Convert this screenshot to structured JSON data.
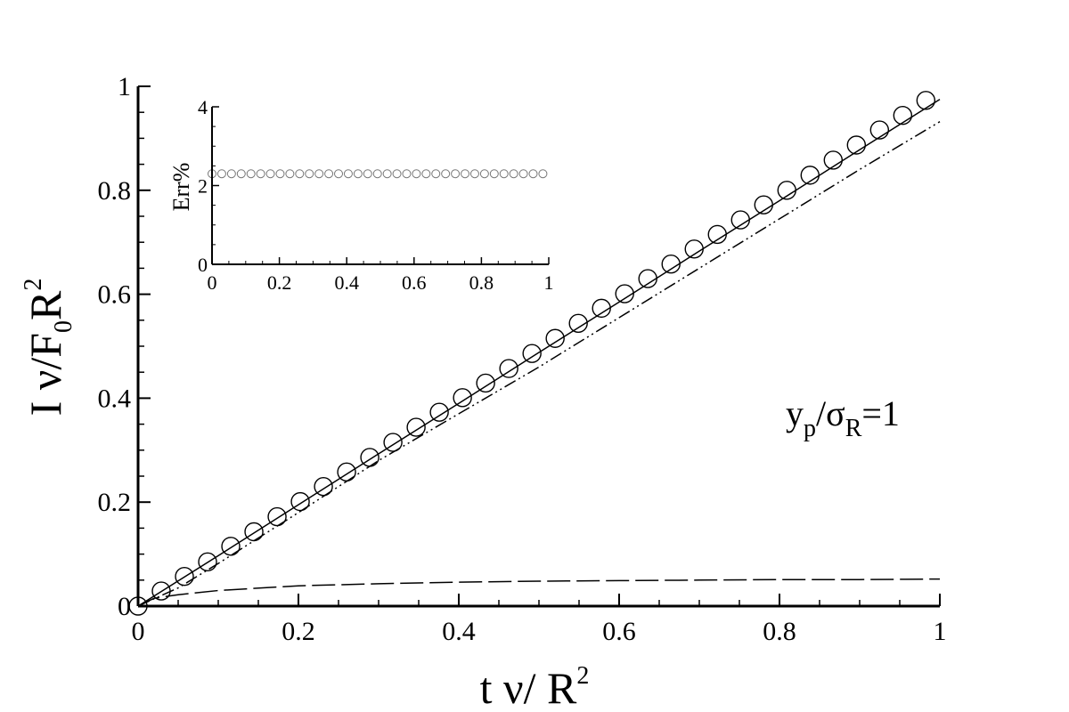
{
  "chart_data": [
    {
      "type": "line",
      "title": "",
      "xlabel": {
        "base": "t ν/ R",
        "sup": "2"
      },
      "ylabel": {
        "pre": "I ν/F",
        "sub": "0",
        "mid": "R",
        "sup": "2"
      },
      "xlim": [
        0,
        1
      ],
      "ylim": [
        0,
        1
      ],
      "xticks": [
        "0",
        "0.2",
        "0.4",
        "0.6",
        "0.8",
        "1"
      ],
      "yticks": [
        "0",
        "0.2",
        "0.4",
        "0.6",
        "0.8",
        "1"
      ],
      "grid": false,
      "legend": "none",
      "annotation": {
        "a": "y",
        "a_sub": "p",
        "b": "/σ",
        "b_sub": "R",
        "c": "=1"
      },
      "series": [
        {
          "style": "circles",
          "x": [
            0,
            0.0289,
            0.0578,
            0.0867,
            0.1156,
            0.1445,
            0.1734,
            0.2023,
            0.2312,
            0.2601,
            0.289,
            0.3179,
            0.3468,
            0.3757,
            0.4046,
            0.4335,
            0.4624,
            0.4913,
            0.5202,
            0.5491,
            0.578,
            0.6069,
            0.6358,
            0.6647,
            0.6936,
            0.7225,
            0.7514,
            0.7803,
            0.8092,
            0.8381,
            0.867,
            0.8959,
            0.9248,
            0.9537,
            0.9826
          ],
          "y": [
            0,
            0.029,
            0.057,
            0.085,
            0.115,
            0.143,
            0.172,
            0.201,
            0.23,
            0.258,
            0.286,
            0.315,
            0.344,
            0.373,
            0.401,
            0.429,
            0.457,
            0.486,
            0.515,
            0.544,
            0.573,
            0.601,
            0.63,
            0.658,
            0.687,
            0.715,
            0.743,
            0.772,
            0.8,
            0.829,
            0.858,
            0.887,
            0.916,
            0.944,
            0.973
          ]
        },
        {
          "style": "solid",
          "x": [
            0,
            0.1,
            0.2,
            0.3,
            0.4,
            0.5,
            0.6,
            0.7,
            0.8,
            0.9,
            1.0
          ],
          "y": [
            0,
            0.097,
            0.195,
            0.293,
            0.39,
            0.488,
            0.585,
            0.683,
            0.78,
            0.878,
            0.975
          ]
        },
        {
          "style": "dash-dot-dot",
          "x": [
            0,
            0.05,
            0.1,
            0.15,
            0.2,
            0.3,
            0.4,
            0.5,
            0.6,
            0.7,
            0.8,
            0.9,
            1.0
          ],
          "y": [
            0,
            0.035,
            0.082,
            0.131,
            0.18,
            0.28,
            0.37,
            0.46,
            0.555,
            0.65,
            0.745,
            0.84,
            0.932
          ]
        },
        {
          "style": "dashed",
          "x": [
            0,
            0.02,
            0.05,
            0.1,
            0.2,
            0.3,
            0.4,
            0.5,
            0.6,
            0.7,
            0.8,
            0.9,
            1.0
          ],
          "y": [
            0,
            0.015,
            0.022,
            0.03,
            0.039,
            0.043,
            0.046,
            0.048,
            0.049,
            0.05,
            0.051,
            0.051,
            0.052
          ]
        }
      ]
    },
    {
      "type": "scatter",
      "title": "",
      "xlabel": "",
      "ylabel": "Err%",
      "xlim": [
        0,
        1
      ],
      "ylim": [
        0,
        4
      ],
      "xticks": [
        "0",
        "0.2",
        "0.4",
        "0.6",
        "0.8",
        "1"
      ],
      "yticks": [
        "0",
        "2",
        "4"
      ],
      "grid": false,
      "series": [
        {
          "style": "circles",
          "x": [
            0,
            0.0289,
            0.0578,
            0.0867,
            0.1156,
            0.1445,
            0.1734,
            0.2023,
            0.2312,
            0.2601,
            0.289,
            0.3179,
            0.3468,
            0.3757,
            0.4046,
            0.4335,
            0.4624,
            0.4913,
            0.5202,
            0.5491,
            0.578,
            0.6069,
            0.6358,
            0.6647,
            0.6936,
            0.7225,
            0.7514,
            0.7803,
            0.8092,
            0.8381,
            0.867,
            0.8959,
            0.9248,
            0.9537,
            0.9826
          ],
          "y": [
            2.3,
            2.3,
            2.3,
            2.3,
            2.3,
            2.3,
            2.3,
            2.3,
            2.3,
            2.3,
            2.3,
            2.3,
            2.3,
            2.3,
            2.3,
            2.3,
            2.3,
            2.3,
            2.3,
            2.3,
            2.3,
            2.3,
            2.3,
            2.3,
            2.3,
            2.3,
            2.3,
            2.3,
            2.3,
            2.3,
            2.3,
            2.3,
            2.3,
            2.3,
            2.3
          ]
        }
      ]
    }
  ]
}
